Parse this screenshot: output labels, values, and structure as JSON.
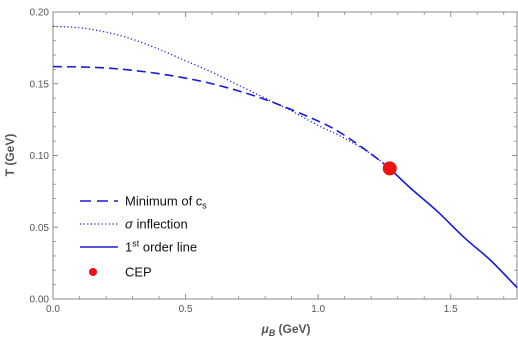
{
  "chart_data": {
    "type": "line",
    "xlabel_symbol": "μ",
    "xlabel_sub": "B",
    "xlabel_unit": " (GeV)",
    "ylabel": "T (GeV)",
    "xlim": [
      0,
      1.75
    ],
    "ylim": [
      0,
      0.2
    ],
    "xticks": [
      "0.0",
      "0.5",
      "1.0",
      "1.5"
    ],
    "xtick_values": [
      0,
      0.5,
      1.0,
      1.5
    ],
    "yticks": [
      "0.00",
      "0.05",
      "0.10",
      "0.15",
      "0.20"
    ],
    "ytick_values": [
      0,
      0.05,
      0.1,
      0.15,
      0.2
    ],
    "series": [
      {
        "legend_parts": [
          "Minimum of c",
          "s",
          ""
        ],
        "style": "dashed",
        "color": "#1a1adc",
        "x": [
          0.0,
          0.2,
          0.4,
          0.6,
          0.8,
          1.0,
          1.1,
          1.2,
          1.27
        ],
        "y": [
          0.162,
          0.161,
          0.157,
          0.15,
          0.139,
          0.124,
          0.114,
          0.101,
          0.091
        ]
      },
      {
        "legend_parts": [
          "σ",
          "",
          " inflection"
        ],
        "style": "dotted",
        "color": "#1a1adc",
        "x": [
          0.0,
          0.1,
          0.2,
          0.3,
          0.4,
          0.5,
          0.6,
          0.7,
          0.8,
          0.9,
          1.0,
          1.1,
          1.2,
          1.27
        ],
        "y": [
          0.19,
          0.189,
          0.186,
          0.181,
          0.174,
          0.166,
          0.158,
          0.149,
          0.14,
          0.131,
          0.121,
          0.112,
          0.101,
          0.091
        ]
      },
      {
        "legend_parts": [
          "1",
          "st",
          " order line"
        ],
        "style": "solid",
        "color": "#1a1adc",
        "x": [
          1.27,
          1.35,
          1.45,
          1.55,
          1.65,
          1.75
        ],
        "y": [
          0.091,
          0.077,
          0.061,
          0.043,
          0.027,
          0.008
        ]
      }
    ],
    "points": [
      {
        "name": "CEP",
        "x": 1.27,
        "y": 0.091,
        "color": "#ee1111"
      }
    ],
    "grid": false,
    "legend_position": "lower-left"
  }
}
